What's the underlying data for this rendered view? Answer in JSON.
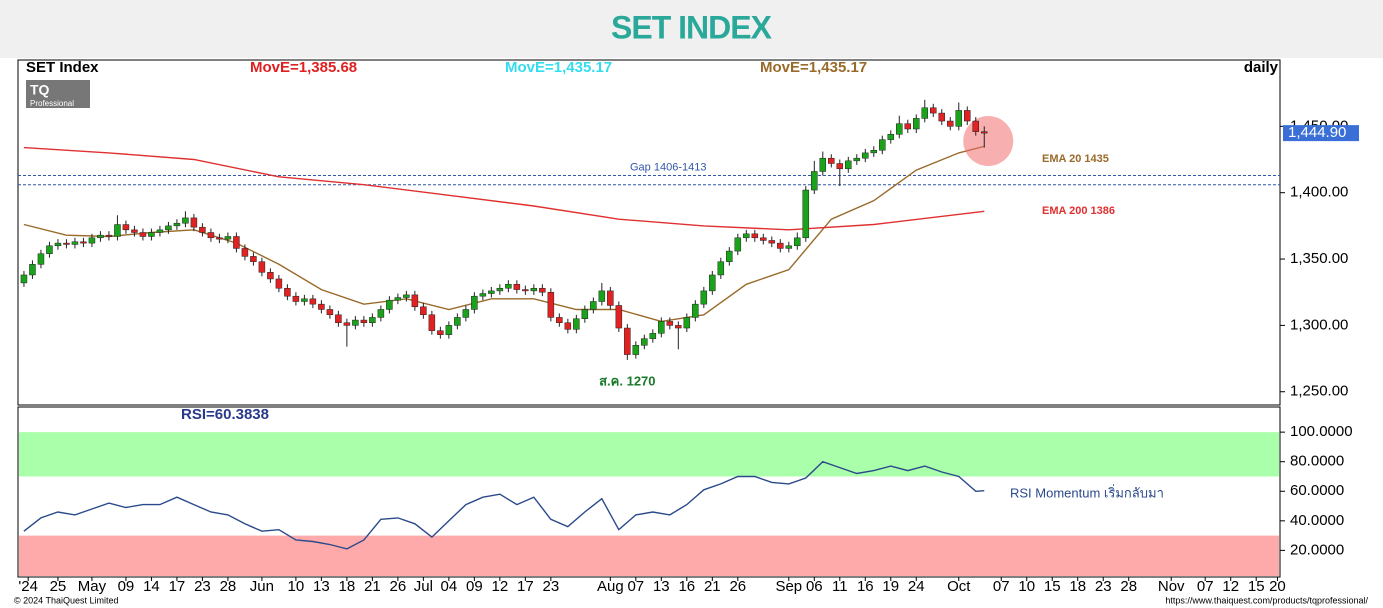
{
  "header": {
    "title": "SET INDEX"
  },
  "chart_data": [
    {
      "type": "candlestick",
      "title": "SET Index",
      "period": "daily",
      "indicators": [
        {
          "label": "MovE=1,385.68",
          "color": "#e02020"
        },
        {
          "label": "MovE=1,435.17",
          "color": "#33ddee"
        },
        {
          "label": "MovE=1,435.17",
          "color": "#9a6a2a"
        }
      ],
      "logo": {
        "text": "TQ",
        "sub": "Professional"
      },
      "up_color": "#1aa31a",
      "down_color": "#e02222",
      "open": [
        1332,
        1338,
        1346,
        1354,
        1360,
        1362,
        1361,
        1363,
        1362,
        1366,
        1368,
        1367,
        1376,
        1372,
        1370,
        1367,
        1370,
        1372,
        1375,
        1377,
        1381,
        1374,
        1370,
        1366,
        1365,
        1367,
        1358,
        1352,
        1348,
        1340,
        1335,
        1328,
        1322,
        1318,
        1320,
        1316,
        1312,
        1308,
        1302,
        1300,
        1304,
        1302,
        1306,
        1312,
        1319,
        1321,
        1323,
        1314,
        1308,
        1296,
        1293,
        1300,
        1306,
        1312,
        1322,
        1324,
        1326,
        1328,
        1331,
        1327,
        1326,
        1328,
        1325,
        1306,
        1302,
        1297,
        1305,
        1312,
        1318,
        1326,
        1315,
        1298,
        1278,
        1285,
        1290,
        1294,
        1303,
        1300,
        1298,
        1306,
        1316,
        1326,
        1338,
        1348,
        1356,
        1366,
        1369,
        1366,
        1364,
        1362,
        1358,
        1360,
        1366,
        1402,
        1416,
        1426,
        1422,
        1418,
        1424,
        1426,
        1430,
        1432,
        1440,
        1444,
        1452,
        1448,
        1456,
        1464,
        1460,
        1454,
        1450,
        1462,
        1454,
        1446
      ],
      "high": [
        1341,
        1349,
        1357,
        1363,
        1365,
        1365,
        1366,
        1366,
        1369,
        1371,
        1371,
        1383,
        1379,
        1375,
        1373,
        1373,
        1375,
        1378,
        1380,
        1386,
        1384,
        1377,
        1373,
        1369,
        1370,
        1370,
        1361,
        1355,
        1351,
        1343,
        1338,
        1331,
        1325,
        1323,
        1323,
        1319,
        1315,
        1311,
        1305,
        1307,
        1307,
        1309,
        1315,
        1322,
        1324,
        1326,
        1326,
        1317,
        1311,
        1299,
        1303,
        1309,
        1315,
        1325,
        1327,
        1329,
        1331,
        1334,
        1334,
        1330,
        1331,
        1331,
        1328,
        1309,
        1305,
        1308,
        1315,
        1321,
        1332,
        1329,
        1318,
        1301,
        1288,
        1293,
        1297,
        1306,
        1306,
        1303,
        1309,
        1319,
        1329,
        1341,
        1351,
        1359,
        1369,
        1372,
        1372,
        1369,
        1367,
        1365,
        1363,
        1370,
        1405,
        1424,
        1431,
        1429,
        1425,
        1427,
        1429,
        1433,
        1435,
        1443,
        1447,
        1458,
        1455,
        1459,
        1470,
        1467,
        1463,
        1457,
        1468,
        1465,
        1457,
        1450
      ],
      "low": [
        1329,
        1335,
        1343,
        1351,
        1357,
        1358,
        1358,
        1359,
        1359,
        1363,
        1364,
        1364,
        1369,
        1367,
        1364,
        1364,
        1367,
        1369,
        1372,
        1374,
        1371,
        1367,
        1363,
        1362,
        1362,
        1355,
        1349,
        1345,
        1337,
        1332,
        1325,
        1319,
        1315,
        1315,
        1313,
        1309,
        1305,
        1299,
        1284,
        1297,
        1299,
        1299,
        1303,
        1309,
        1316,
        1318,
        1311,
        1305,
        1293,
        1290,
        1290,
        1297,
        1303,
        1309,
        1319,
        1321,
        1323,
        1325,
        1324,
        1323,
        1323,
        1322,
        1303,
        1299,
        1294,
        1294,
        1302,
        1309,
        1315,
        1312,
        1295,
        1274,
        1275,
        1282,
        1287,
        1291,
        1297,
        1282,
        1295,
        1303,
        1313,
        1323,
        1335,
        1345,
        1353,
        1363,
        1363,
        1361,
        1359,
        1355,
        1355,
        1357,
        1363,
        1399,
        1413,
        1419,
        1405,
        1415,
        1421,
        1423,
        1427,
        1429,
        1437,
        1441,
        1445,
        1445,
        1453,
        1457,
        1451,
        1447,
        1447,
        1451,
        1443,
        1434
      ],
      "close": [
        1338,
        1346,
        1354,
        1360,
        1362,
        1361,
        1363,
        1362,
        1366,
        1368,
        1367,
        1376,
        1372,
        1370,
        1367,
        1370,
        1372,
        1375,
        1377,
        1381,
        1374,
        1370,
        1366,
        1365,
        1367,
        1358,
        1352,
        1348,
        1340,
        1335,
        1328,
        1322,
        1318,
        1320,
        1316,
        1312,
        1308,
        1302,
        1300,
        1304,
        1302,
        1306,
        1312,
        1319,
        1321,
        1323,
        1314,
        1308,
        1296,
        1293,
        1300,
        1306,
        1312,
        1322,
        1324,
        1326,
        1328,
        1331,
        1327,
        1326,
        1328,
        1325,
        1306,
        1302,
        1297,
        1305,
        1312,
        1318,
        1326,
        1315,
        1298,
        1278,
        1285,
        1290,
        1294,
        1303,
        1300,
        1298,
        1306,
        1316,
        1326,
        1338,
        1348,
        1356,
        1366,
        1369,
        1366,
        1364,
        1362,
        1358,
        1360,
        1366,
        1402,
        1416,
        1426,
        1422,
        1418,
        1424,
        1426,
        1430,
        1432,
        1440,
        1444,
        1452,
        1448,
        1456,
        1464,
        1460,
        1454,
        1450,
        1462,
        1454,
        1446,
        1444.9
      ],
      "lines": [
        {
          "name": "EMA 20 1435",
          "color": "#9a6a2a",
          "x": [
            0,
            5,
            10,
            15,
            20,
            25,
            30,
            35,
            40,
            45,
            50,
            55,
            60,
            65,
            70,
            75,
            80,
            85,
            90,
            95,
            100,
            105,
            110,
            113
          ],
          "values": [
            1376,
            1368,
            1367,
            1370,
            1372,
            1362,
            1346,
            1327,
            1316,
            1320,
            1312,
            1320,
            1320,
            1312,
            1312,
            1303,
            1308,
            1331,
            1342,
            1380,
            1394,
            1417,
            1430,
            1435
          ]
        },
        {
          "name": "EMA 200 1386",
          "color": "#e03030",
          "x": [
            0,
            10,
            20,
            30,
            40,
            50,
            60,
            70,
            80,
            90,
            100,
            113
          ],
          "values": [
            1434,
            1430,
            1425,
            1412,
            1406,
            1398,
            1390,
            1380,
            1375,
            1372,
            1376,
            1386
          ]
        }
      ],
      "gap": {
        "label": "Gap 1406-1413",
        "values": [
          1413,
          1406
        ],
        "color": "#3355aa"
      },
      "annotations": [
        {
          "text": "ส.ค. 1270",
          "color": "#1a7a2a"
        }
      ],
      "last_price": {
        "value": 1444.9,
        "label": "1,444.90"
      },
      "ylim": [
        1240,
        1500
      ],
      "yticks": [
        {
          "value": 1450,
          "label": "1,450.00"
        },
        {
          "value": 1400,
          "label": "1,400.00"
        },
        {
          "value": 1350,
          "label": "1,350.00"
        },
        {
          "value": 1300,
          "label": "1,300.00"
        },
        {
          "value": 1250,
          "label": "1,250.00"
        }
      ],
      "xlim": [
        -0.7,
        147.8
      ]
    },
    {
      "type": "line",
      "title": "RSI=60.3838",
      "series": [
        {
          "name": "RSI Momentum เริ่มกลับมา",
          "color": "#2a4a8a",
          "x": [
            0,
            2,
            4,
            6,
            8,
            10,
            12,
            14,
            16,
            18,
            20,
            22,
            24,
            26,
            28,
            30,
            32,
            34,
            36,
            38,
            40,
            42,
            44,
            46,
            48,
            50,
            52,
            54,
            56,
            58,
            60,
            62,
            64,
            66,
            68,
            70,
            72,
            74,
            76,
            78,
            80,
            82,
            84,
            86,
            88,
            90,
            92,
            94,
            96,
            98,
            100,
            102,
            104,
            106,
            108,
            110,
            112,
            113
          ],
          "values": [
            33,
            42,
            46,
            44,
            48,
            52,
            49,
            51,
            51,
            56,
            51,
            46,
            44,
            38,
            33,
            34,
            27,
            26,
            24,
            21,
            27,
            41,
            42,
            38,
            29,
            40,
            51,
            56,
            58,
            51,
            56,
            41,
            36,
            46,
            55,
            34,
            44,
            46,
            44,
            51,
            61,
            65,
            70,
            70,
            66,
            65,
            69,
            80,
            76,
            72,
            74,
            77,
            74,
            77,
            73,
            70,
            60,
            60.3838
          ]
        }
      ],
      "bands": [
        {
          "from": 70,
          "to": 100,
          "color": "#aaffaa"
        },
        {
          "from": 0,
          "to": 30,
          "color": "#ffaaaa"
        }
      ],
      "ylim": [
        2,
        117
      ],
      "yticks": [
        {
          "value": 100,
          "label": "100.0000"
        },
        {
          "value": 80,
          "label": "80.0000"
        },
        {
          "value": 60,
          "label": "60.0000"
        },
        {
          "value": 40,
          "label": "40.0000"
        },
        {
          "value": 20,
          "label": "20.0000"
        }
      ],
      "xlim": [
        -0.7,
        147.8
      ],
      "xticks": [
        {
          "value": 0.5,
          "label": "'24"
        },
        {
          "value": 4,
          "label": "25"
        },
        {
          "value": 8,
          "label": "May"
        },
        {
          "value": 12,
          "label": "09"
        },
        {
          "value": 15,
          "label": "14"
        },
        {
          "value": 18,
          "label": "17"
        },
        {
          "value": 21,
          "label": "23"
        },
        {
          "value": 24,
          "label": "28"
        },
        {
          "value": 28,
          "label": "Jun"
        },
        {
          "value": 32,
          "label": "10"
        },
        {
          "value": 35,
          "label": "13"
        },
        {
          "value": 38,
          "label": "18"
        },
        {
          "value": 41,
          "label": "21"
        },
        {
          "value": 44,
          "label": "26"
        },
        {
          "value": 47,
          "label": "Jul"
        },
        {
          "value": 50,
          "label": "04"
        },
        {
          "value": 53,
          "label": "09"
        },
        {
          "value": 56,
          "label": "12"
        },
        {
          "value": 59,
          "label": "17"
        },
        {
          "value": 62,
          "label": "23"
        },
        {
          "value": 69,
          "label": "Aug"
        },
        {
          "value": 72,
          "label": "07"
        },
        {
          "value": 75,
          "label": "13"
        },
        {
          "value": 78,
          "label": "16"
        },
        {
          "value": 81,
          "label": "21"
        },
        {
          "value": 84,
          "label": "26"
        },
        {
          "value": 90,
          "label": "Sep"
        },
        {
          "value": 93,
          "label": "06"
        },
        {
          "value": 96,
          "label": "11"
        },
        {
          "value": 99,
          "label": "16"
        },
        {
          "value": 102,
          "label": "19"
        },
        {
          "value": 105,
          "label": "24"
        },
        {
          "value": 110,
          "label": "Oct"
        },
        {
          "value": 115,
          "label": "07"
        },
        {
          "value": 118,
          "label": "10"
        },
        {
          "value": 121,
          "label": "15"
        },
        {
          "value": 124,
          "label": "18"
        },
        {
          "value": 127,
          "label": "23"
        },
        {
          "value": 130,
          "label": "28"
        },
        {
          "value": 135,
          "label": "Nov"
        },
        {
          "value": 139,
          "label": "07"
        },
        {
          "value": 142,
          "label": "12"
        },
        {
          "value": 145,
          "label": "15"
        },
        {
          "value": 147.5,
          "label": "20"
        }
      ]
    }
  ],
  "footer": {
    "left": "© 2024 ThaiQuest Limited",
    "right": "https://www.thaiquest.com/products/tqprofessional/"
  }
}
